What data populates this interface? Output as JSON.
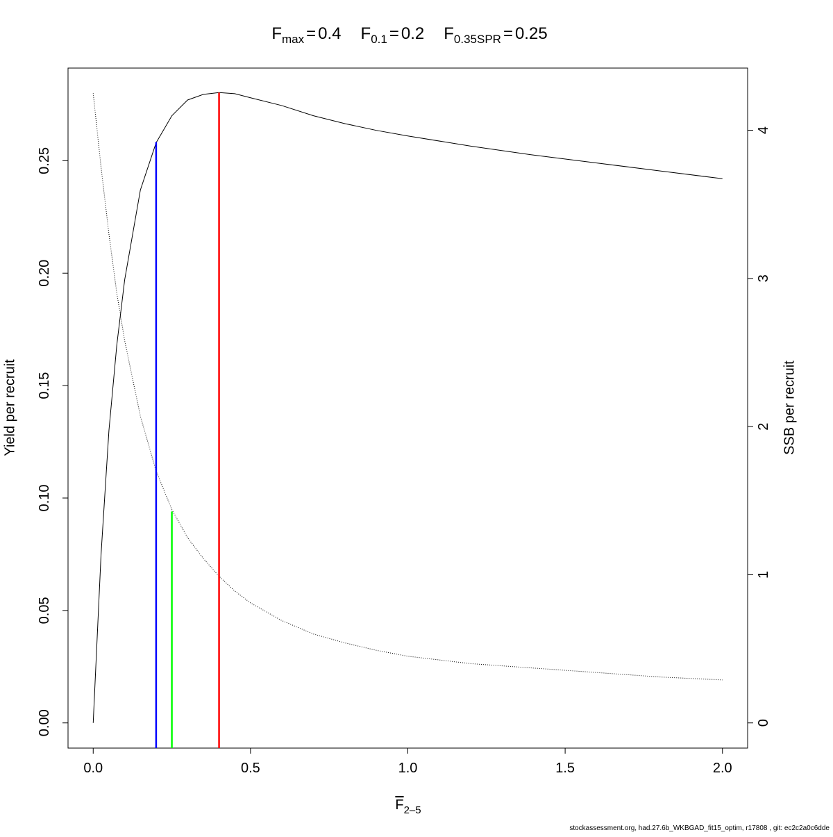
{
  "chart_data": {
    "type": "line",
    "title_relation": "=",
    "reference_lines": [
      {
        "symbol": "F",
        "sub": "max",
        "x": 0.4,
        "y": 0.2803,
        "color": "#ff0000"
      },
      {
        "symbol": "F",
        "sub": "0.1",
        "x": 0.2,
        "y": 0.2583,
        "color": "#0000ff"
      },
      {
        "symbol": "F",
        "sub": "0.35SPR",
        "x": 0.25,
        "y": 0.094,
        "color": "#00ff00"
      }
    ],
    "xlabel": {
      "symbol": "F",
      "sub": "2–5"
    },
    "ylabel": "Yield per recruit",
    "y2label": "SSB per recruit",
    "footer": "stockassessment.org, had.27.6b_WKBGAD_fit15_optim, r17808 , git: ec2c2a0c6dde",
    "x": [
      0,
      0.025,
      0.05,
      0.075,
      0.1,
      0.15,
      0.2,
      0.25,
      0.3,
      0.35,
      0.4,
      0.45,
      0.5,
      0.6,
      0.7,
      0.8,
      0.9,
      1.0,
      1.2,
      1.4,
      1.6,
      1.8,
      2.0
    ],
    "series": [
      {
        "values": [
          0,
          0.075,
          0.13,
          0.168,
          0.197,
          0.237,
          0.258,
          0.27,
          0.277,
          0.2795,
          0.2803,
          0.2798,
          0.278,
          0.2745,
          0.27,
          0.2665,
          0.2635,
          0.261,
          0.2565,
          0.2525,
          0.249,
          0.2455,
          0.242
        ],
        "color": "#000000",
        "dash": "solid"
      },
      {
        "values": [
          4.25,
          3.75,
          3.3,
          2.9,
          2.58,
          2.07,
          1.7,
          1.44,
          1.25,
          1.11,
          0.99,
          0.89,
          0.81,
          0.69,
          0.6,
          0.54,
          0.49,
          0.45,
          0.4,
          0.37,
          0.34,
          0.31,
          0.29
        ],
        "color": "#000000",
        "dash": "dotted",
        "axis": "y2"
      }
    ],
    "xlim": [
      -0.08,
      2.08
    ],
    "ylim": [
      -0.0112,
      0.2912
    ],
    "y2lim": [
      -0.17,
      4.42
    ],
    "xticks": [
      {
        "value": 0,
        "label": "0.0"
      },
      0.5,
      {
        "value": 1,
        "label": "1.0"
      },
      1.5,
      {
        "value": 2,
        "label": "2.0"
      }
    ],
    "yticks": [
      {
        "value": 0,
        "label": "0.00"
      },
      0.05,
      {
        "value": 0.1,
        "label": "0.10"
      },
      0.15,
      {
        "value": 0.2,
        "label": "0.20"
      },
      0.25
    ],
    "y2ticks": [
      0,
      1,
      2,
      3,
      4
    ]
  }
}
